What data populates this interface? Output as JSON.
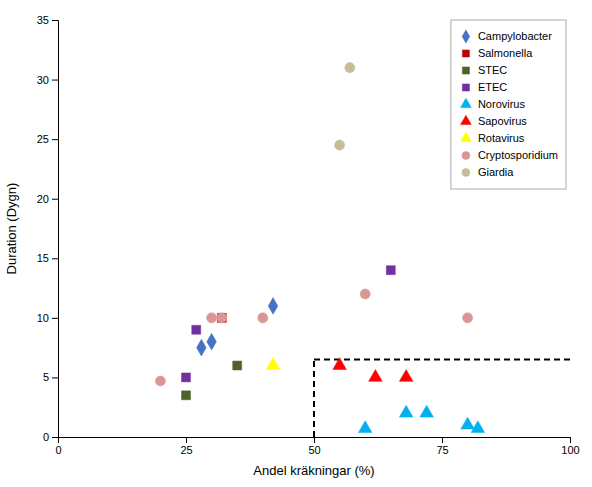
{
  "chart_data": {
    "type": "scatter",
    "xlabel": "Andel kräkningar (%)",
    "ylabel": "Duration (Dygn)",
    "xlim": [
      0,
      100
    ],
    "ylim": [
      0,
      35
    ],
    "xticks": [
      0,
      25,
      50,
      75,
      100
    ],
    "yticks": [
      0,
      5,
      10,
      15,
      20,
      25,
      30,
      35
    ],
    "grid": false,
    "legend": "upper right",
    "series": [
      {
        "name": "Campylobacter",
        "color": "#4472C4",
        "marker": "diamond",
        "x": [
          28,
          30,
          42
        ],
        "values": [
          7.5,
          8.0,
          11.0
        ]
      },
      {
        "name": "Salmonella",
        "color": "#C00000",
        "marker": "square",
        "x": [
          32
        ],
        "values": [
          10.0
        ]
      },
      {
        "name": "STEC",
        "color": "#4F6228",
        "marker": "square",
        "x": [
          25,
          35
        ],
        "values": [
          3.5,
          6.0
        ]
      },
      {
        "name": "ETEC",
        "color": "#7030A0",
        "marker": "square",
        "x": [
          27,
          25,
          65
        ],
        "values": [
          9.0,
          5.0,
          14.0
        ]
      },
      {
        "name": "Norovirus",
        "color": "#00B0F0",
        "marker": "triangle",
        "x": [
          60,
          68,
          72,
          80,
          82
        ],
        "values": [
          0.7,
          2.0,
          2.0,
          1.0,
          0.7
        ]
      },
      {
        "name": "Sapovirus",
        "color": "#FF0000",
        "marker": "triangle",
        "x": [
          55,
          62,
          68
        ],
        "values": [
          6.0,
          5.0,
          5.0
        ]
      },
      {
        "name": "Rotavirus",
        "color": "#FFFF00",
        "marker": "triangle",
        "x": [
          42
        ],
        "values": [
          6.0
        ]
      },
      {
        "name": "Cryptosporidium",
        "color": "#D99694",
        "marker": "circle",
        "x": [
          20,
          30,
          32,
          40,
          60,
          80
        ],
        "values": [
          4.7,
          10.0,
          10.0,
          10.0,
          12.0,
          10.0
        ]
      },
      {
        "name": "Giardia",
        "color": "#C4BD97",
        "marker": "circle",
        "x": [
          55,
          57
        ],
        "values": [
          24.5,
          31.0
        ]
      }
    ],
    "reference_lines": [
      {
        "x": [
          50,
          50
        ],
        "y": [
          0,
          6.5
        ],
        "line_style": "dashed",
        "color": "#000000"
      },
      {
        "x": [
          50,
          100
        ],
        "y": [
          6.5,
          6.5
        ],
        "line_style": "dashed",
        "color": "#000000"
      }
    ]
  }
}
